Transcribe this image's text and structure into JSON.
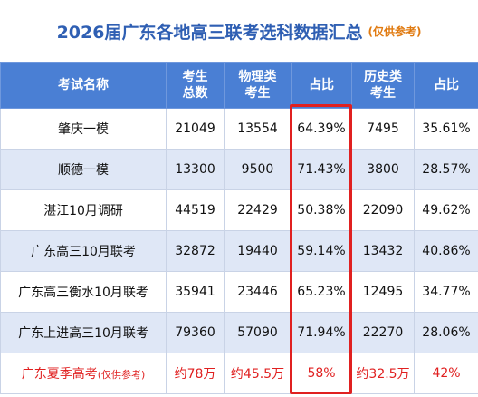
{
  "header": {
    "title": "2026届广东各地高三联考选科数据汇总",
    "note": "(仅供参考)"
  },
  "table": {
    "columns": [
      [
        "考试名称"
      ],
      [
        "考生",
        "总数"
      ],
      [
        "物理类",
        "考生"
      ],
      [
        "占比"
      ],
      [
        "历史类",
        "考生"
      ],
      [
        "占比"
      ]
    ],
    "rows": [
      [
        "肇庆一模",
        "21049",
        "13554",
        "64.39%",
        "7495",
        "35.61%"
      ],
      [
        "顺德一模",
        "13300",
        "9500",
        "71.43%",
        "3800",
        "28.57%"
      ],
      [
        "湛江10月调研",
        "44519",
        "22429",
        "50.38%",
        "22090",
        "49.62%"
      ],
      [
        "广东高三10月联考",
        "32872",
        "19440",
        "59.14%",
        "13432",
        "40.86%"
      ],
      [
        "广东高三衡水10月联考",
        "35941",
        "23446",
        "65.23%",
        "12495",
        "34.77%"
      ],
      [
        "广东上进高三10月联考",
        "79360",
        "57090",
        "71.94%",
        "22270",
        "28.06%"
      ]
    ],
    "summary": {
      "name": "广东夏季高考",
      "note": "(仅供参考)",
      "cells": [
        "约78万",
        "约45.5万",
        "58%",
        "约32.5万",
        "42%"
      ]
    }
  }
}
